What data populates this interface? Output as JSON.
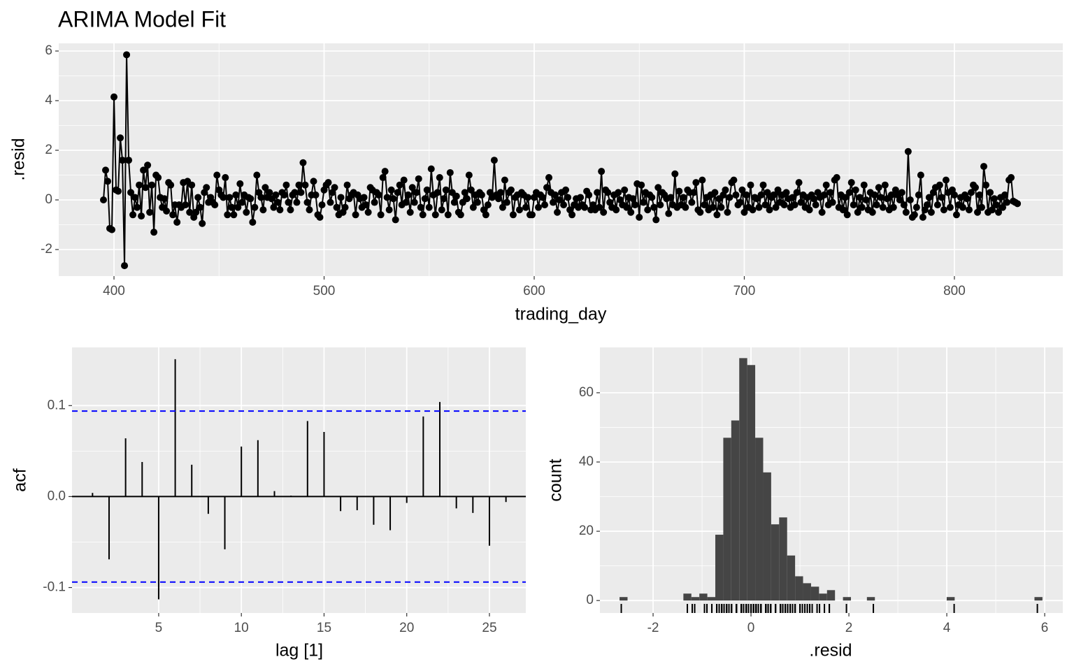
{
  "chart_data": [
    {
      "type": "line",
      "title": "ARIMA Model Fit",
      "xlabel": "trading_day",
      "ylabel": ".resid",
      "color": "#000000",
      "markers": true,
      "grid": true,
      "xlim": [
        373.7,
        851.6
      ],
      "ylim": [
        -3.07,
        6.31
      ],
      "xticks": [
        400,
        500,
        600,
        700,
        800
      ],
      "yticks": [
        -2,
        0,
        2,
        4,
        6
      ],
      "x": [
        395,
        396,
        397,
        398,
        399,
        400,
        401,
        402,
        403,
        404,
        405,
        406,
        407,
        408,
        409,
        410,
        411,
        412,
        413,
        414,
        415,
        416,
        417,
        418,
        419,
        420,
        421,
        422,
        423,
        424,
        425,
        426,
        427,
        428,
        429,
        430,
        431,
        432,
        433,
        434,
        435,
        436,
        437,
        438,
        439,
        440,
        441,
        442,
        443,
        444,
        445,
        446,
        447,
        448,
        449,
        450,
        451,
        452,
        453,
        454,
        455,
        456,
        457,
        458,
        459,
        460,
        461,
        462,
        463,
        464,
        465,
        466,
        467,
        468,
        469,
        470,
        471,
        472,
        473,
        474,
        475,
        476,
        477,
        478,
        479,
        480,
        481,
        482,
        483,
        484,
        485,
        486,
        487,
        488,
        489,
        490,
        491,
        492,
        493,
        494,
        495,
        496,
        497,
        498,
        499,
        500,
        501,
        502,
        503,
        504,
        505,
        506,
        507,
        508,
        509,
        510,
        511,
        512,
        513,
        514,
        515,
        516,
        517,
        518,
        519,
        520,
        521,
        522,
        523,
        524,
        525,
        526,
        527,
        528,
        529,
        530,
        531,
        532,
        533,
        534,
        535,
        536,
        537,
        538,
        539,
        540,
        541,
        542,
        543,
        544,
        545,
        546,
        547,
        548,
        549,
        550,
        551,
        552,
        553,
        554,
        555,
        556,
        557,
        558,
        559,
        560,
        561,
        562,
        563,
        564,
        565,
        566,
        567,
        568,
        569,
        570,
        571,
        572,
        573,
        574,
        575,
        576,
        577,
        578,
        579,
        580,
        581,
        582,
        583,
        584,
        585,
        586,
        587,
        588,
        589,
        590,
        591,
        592,
        593,
        594,
        595,
        596,
        597,
        598,
        599,
        600,
        601,
        602,
        603,
        604,
        605,
        606,
        607,
        608,
        609,
        610,
        611,
        612,
        613,
        614,
        615,
        616,
        617,
        618,
        619,
        620,
        621,
        622,
        623,
        624,
        625,
        626,
        627,
        628,
        629,
        630,
        631,
        632,
        633,
        634,
        635,
        636,
        637,
        638,
        639,
        640,
        641,
        642,
        643,
        644,
        645,
        646,
        647,
        648,
        649,
        650,
        651,
        652,
        653,
        654,
        655,
        656,
        657,
        658,
        659,
        660,
        661,
        662,
        663,
        664,
        665,
        666,
        667,
        668,
        669,
        670,
        671,
        672,
        673,
        674,
        675,
        676,
        677,
        678,
        679,
        680,
        681,
        682,
        683,
        684,
        685,
        686,
        687,
        688,
        689,
        690,
        691,
        692,
        693,
        694,
        695,
        696,
        697,
        698,
        699,
        700,
        701,
        702,
        703,
        704,
        705,
        706,
        707,
        708,
        709,
        710,
        711,
        712,
        713,
        714,
        715,
        716,
        717,
        718,
        719,
        720,
        721,
        722,
        723,
        724,
        725,
        726,
        727,
        728,
        729,
        730,
        731,
        732,
        733,
        734,
        735,
        736,
        737,
        738,
        739,
        740,
        741,
        742,
        743,
        744,
        745,
        746,
        747,
        748,
        749,
        750,
        751,
        752,
        753,
        754,
        755,
        756,
        757,
        758,
        759,
        760,
        761,
        762,
        763,
        764,
        765,
        766,
        767,
        768,
        769,
        770,
        771,
        772,
        773,
        774,
        775,
        776,
        777,
        778,
        779,
        780,
        781,
        782,
        783,
        784,
        785,
        786,
        787,
        788,
        789,
        790,
        791,
        792,
        793,
        794,
        795,
        796,
        797,
        798,
        799,
        800,
        801,
        802,
        803,
        804,
        805,
        806,
        807,
        808,
        809,
        810,
        811,
        812,
        813,
        814,
        815,
        816,
        817,
        818,
        819,
        820,
        821,
        822,
        823,
        824,
        825,
        826,
        827,
        828,
        829,
        830
      ],
      "values": [
        0,
        1.2,
        0.75,
        -1.15,
        -1.2,
        4.15,
        0.4,
        0.35,
        2.5,
        1.6,
        -2.65,
        5.85,
        1.6,
        0.3,
        -0.6,
        0.1,
        -0.3,
        0.6,
        -0.65,
        1.2,
        0.5,
        1.4,
        -0.5,
        0.6,
        -1.3,
        1.0,
        0.9,
        0.1,
        -0.3,
        0.05,
        -0.45,
        0.7,
        0.6,
        -0.6,
        -0.2,
        -0.9,
        -0.2,
        -0.3,
        0.7,
        -0.2,
        0.75,
        -0.5,
        0.6,
        -0.7,
        -0.5,
        0.1,
        -0.3,
        -0.95,
        0.3,
        0.5,
        -0.1,
        0.1,
        -0.1,
        -0.2,
        1.0,
        0.4,
        0.2,
        0.1,
        0.9,
        -0.6,
        0.1,
        -0.3,
        -0.6,
        0.2,
        -0.3,
        0.65,
        -0.1,
        0.2,
        -0.5,
        0.1,
        0.05,
        -0.9,
        -0.3,
        1.0,
        0.3,
        0.1,
        -0.4,
        0.5,
        0.1,
        0.3,
        0.05,
        -0.3,
        0.2,
        -0.1,
        -0.4,
        0.3,
        0.2,
        0.6,
        -0.1,
        -0.4,
        0.2,
        0.3,
        -0.1,
        0.6,
        0.3,
        1.5,
        0.6,
        -0.1,
        -0.4,
        0.2,
        0.75,
        0.2,
        -0.6,
        -0.7,
        -0.2,
        0.4,
        0.6,
        0.7,
        -0.1,
        0.3,
        0.5,
        -0.3,
        -0.6,
        0.1,
        -0.5,
        -0.3,
        0.6,
        0.05,
        0.2,
        0.3,
        -0.6,
        0.2,
        0.05,
        -0.3,
        0.1,
        -0.2,
        -0.5,
        0.5,
        0.4,
        -0.1,
        0.3,
        0.2,
        -0.6,
        0.9,
        1.15,
        0.1,
        -0.4,
        0.4,
        0.05,
        -0.8,
        0.3,
        0.6,
        -0.2,
        0.8,
        -0.1,
        0.2,
        -0.5,
        0.5,
        -0.1,
        0.3,
        0.85,
        -0.3,
        -0.6,
        0.05,
        0.4,
        -0.3,
        1.25,
        0.2,
        -0.6,
        0.3,
        0.9,
        -0.4,
        0.05,
        0.4,
        -0.6,
        1.1,
        0.3,
        -0.1,
        0.15,
        -0.5,
        -0.6,
        -0.1,
        0.3,
        0.05,
        1.0,
        0.4,
        -0.3,
        0.2,
        -0.1,
        0.3,
        0.2,
        -0.4,
        -0.6,
        -0.2,
        0.3,
        0.1,
        1.6,
        0.2,
        0.05,
        0.3,
        -0.3,
        0.8,
        -0.1,
        0.3,
        0.4,
        -0.6,
        0.1,
        0.2,
        -0.4,
        0.3,
        0.2,
        -0.3,
        0.1,
        -0.6,
        -0.6,
        0.1,
        0.3,
        -0.3,
        0.2,
        0.1,
        -0.2,
        0.5,
        0.9,
        0.3,
        -0.1,
        0.2,
        -0.5,
        0.0,
        0.3,
        -0.2,
        0.4,
        0.1,
        -0.4,
        -0.6,
        -0.2,
        0.05,
        -0.3,
        0.1,
        -0.2,
        -0.3,
        0.35,
        0.2,
        -0.4,
        -0.2,
        -0.4,
        0.3,
        -0.3,
        1.15,
        -0.5,
        0.4,
        0.3,
        -0.1,
        -0.3,
        0.2,
        -0.4,
        0.3,
        0.0,
        -0.2,
        0.4,
        -0.3,
        0.1,
        -0.5,
        0.05,
        -0.2,
        0.65,
        -0.7,
        0.6,
        -0.1,
        0.3,
        -0.4,
        0.2,
        0.1,
        -0.3,
        -0.8,
        0.5,
        -0.2,
        0.3,
        0.2,
        0.05,
        -0.55,
        0.1,
        -0.2,
        1.05,
        -0.3,
        0.35,
        -0.2,
        0.1,
        -0.3,
        0.4,
        0.3,
        -0.1,
        0.3,
        0.7,
        -0.4,
        -0.5,
        0.8,
        -0.2,
        0.1,
        -0.4,
        0.2,
        -0.3,
        0.3,
        -0.6,
        0.05,
        -0.3,
        0.2,
        0.4,
        -0.5,
        0.1,
        0.7,
        0.8,
        0.2,
        -0.2,
        -0.1,
        0.4,
        -0.5,
        0.2,
        -0.3,
        0.6,
        -0.4,
        0.1,
        0.05,
        -0.3,
        0.2,
        0.6,
        -0.2,
        0.3,
        -0.4,
        0.1,
        0.2,
        -0.3,
        0.4,
        -0.1,
        0.2,
        -0.2,
        0.3,
        0.05,
        -0.3,
        0.1,
        -0.2,
        0.3,
        0.7,
        -0.1,
        0.2,
        -0.3,
        0.1,
        -0.4,
        0.2,
        0.05,
        -0.2,
        0.3,
        0.1,
        -0.5,
        0.2,
        0.6,
        -0.2,
        0.3,
        -0.1,
        0.8,
        0.9,
        -0.3,
        0.2,
        -0.4,
        0.1,
        -0.6,
        0.3,
        0.7,
        -0.2,
        0.4,
        -0.5,
        0.1,
        -0.3,
        0.6,
        0.0,
        -0.4,
        0.3,
        -0.5,
        0.2,
        -0.2,
        0.5,
        0.1,
        -0.3,
        0.6,
        0.05,
        -0.4,
        0.2,
        -0.3,
        0.4,
        0.2,
        0.0,
        0.3,
        -0.2,
        -0.5,
        1.95,
        0.0,
        -0.7,
        -0.6,
        -0.3,
        0.2,
        1.0,
        -0.7,
        -0.4,
        -0.2,
        0.1,
        -0.5,
        0.3,
        0.5,
        -0.2,
        0.6,
        0.1,
        -0.4,
        0.8,
        0.3,
        -0.3,
        0.4,
        0.2,
        -0.6,
        -0.2,
        0.1,
        -0.3,
        0.2,
        0.05,
        -0.4,
        0.3,
        0.6,
        0.5,
        -0.5,
        0.2,
        -0.3,
        1.35,
        0.6,
        -0.5,
        0.3,
        -0.4,
        0.05,
        -0.2,
        -0.5,
        0.1,
        -0.3,
        0.2,
        -0.1,
        0.8,
        0.9,
        -0.05,
        -0.1,
        -0.15
      ]
    },
    {
      "type": "acf",
      "xlabel": "lag [1]",
      "ylabel": "acf",
      "color": "#000000",
      "grid": true,
      "xlim": [
        -0.24,
        27.2
      ],
      "ylim": [
        -0.128,
        0.164
      ],
      "xticks": [
        5,
        10,
        15,
        20,
        25
      ],
      "yticks": [
        {
          "value": -0.1,
          "label": "-0.1"
        },
        {
          "value": 0,
          "label": "0.0"
        },
        {
          "value": 0.1,
          "label": "0.1"
        }
      ],
      "ci": [
        0.094,
        -0.094
      ],
      "ci_color": "#0000ff",
      "x": [
        1,
        2,
        3,
        4,
        5,
        6,
        7,
        8,
        9,
        10,
        11,
        12,
        13,
        14,
        15,
        16,
        17,
        18,
        19,
        20,
        21,
        22,
        23,
        24,
        25,
        26
      ],
      "values": [
        0.004,
        -0.069,
        0.064,
        0.038,
        -0.113,
        0.151,
        0.035,
        -0.019,
        -0.058,
        0.055,
        0.062,
        0.006,
        0.001,
        0.083,
        0.071,
        -0.016,
        -0.015,
        -0.031,
        -0.037,
        -0.007,
        0.088,
        0.104,
        -0.013,
        -0.018,
        -0.054,
        -0.006
      ]
    },
    {
      "type": "histogram",
      "xlabel": ".resid",
      "ylabel": "count",
      "color": "#454545",
      "grid": true,
      "rug": true,
      "xlim": [
        -3.086,
        6.37
      ],
      "ylim": [
        -3.6,
        73.1
      ],
      "xticks": [
        -2,
        0,
        2,
        4,
        6
      ],
      "yticks": [
        0,
        20,
        40,
        60
      ],
      "bins": [
        -2.685,
        -2.522,
        -2.359,
        -2.196,
        -2.033,
        -1.87,
        -1.707,
        -1.544,
        -1.381,
        -1.218,
        -1.055,
        -0.892,
        -0.729,
        -0.566,
        -0.403,
        -0.24,
        -0.077,
        0.086,
        0.249,
        0.412,
        0.575,
        0.738,
        0.901,
        1.064,
        1.227,
        1.39,
        1.553,
        1.716,
        1.879,
        2.042,
        2.205,
        2.368,
        2.531,
        2.694,
        2.857,
        3.02,
        3.183,
        3.346,
        3.509,
        3.672,
        3.835,
        3.998,
        4.161,
        4.324,
        4.487,
        4.65,
        4.813,
        4.976,
        5.139,
        5.302,
        5.465,
        5.628,
        5.791,
        5.954
      ],
      "counts": [
        1,
        0,
        0,
        0,
        0,
        0,
        0,
        0,
        2,
        1,
        2,
        1,
        19,
        47,
        52,
        70,
        68,
        47,
        37,
        22,
        24,
        13,
        7,
        5,
        4,
        2,
        3,
        0,
        1,
        0,
        0,
        1,
        0,
        0,
        0,
        0,
        0,
        0,
        0,
        0,
        0,
        1,
        0,
        0,
        0,
        0,
        0,
        0,
        0,
        0,
        0,
        0,
        1
      ]
    }
  ]
}
